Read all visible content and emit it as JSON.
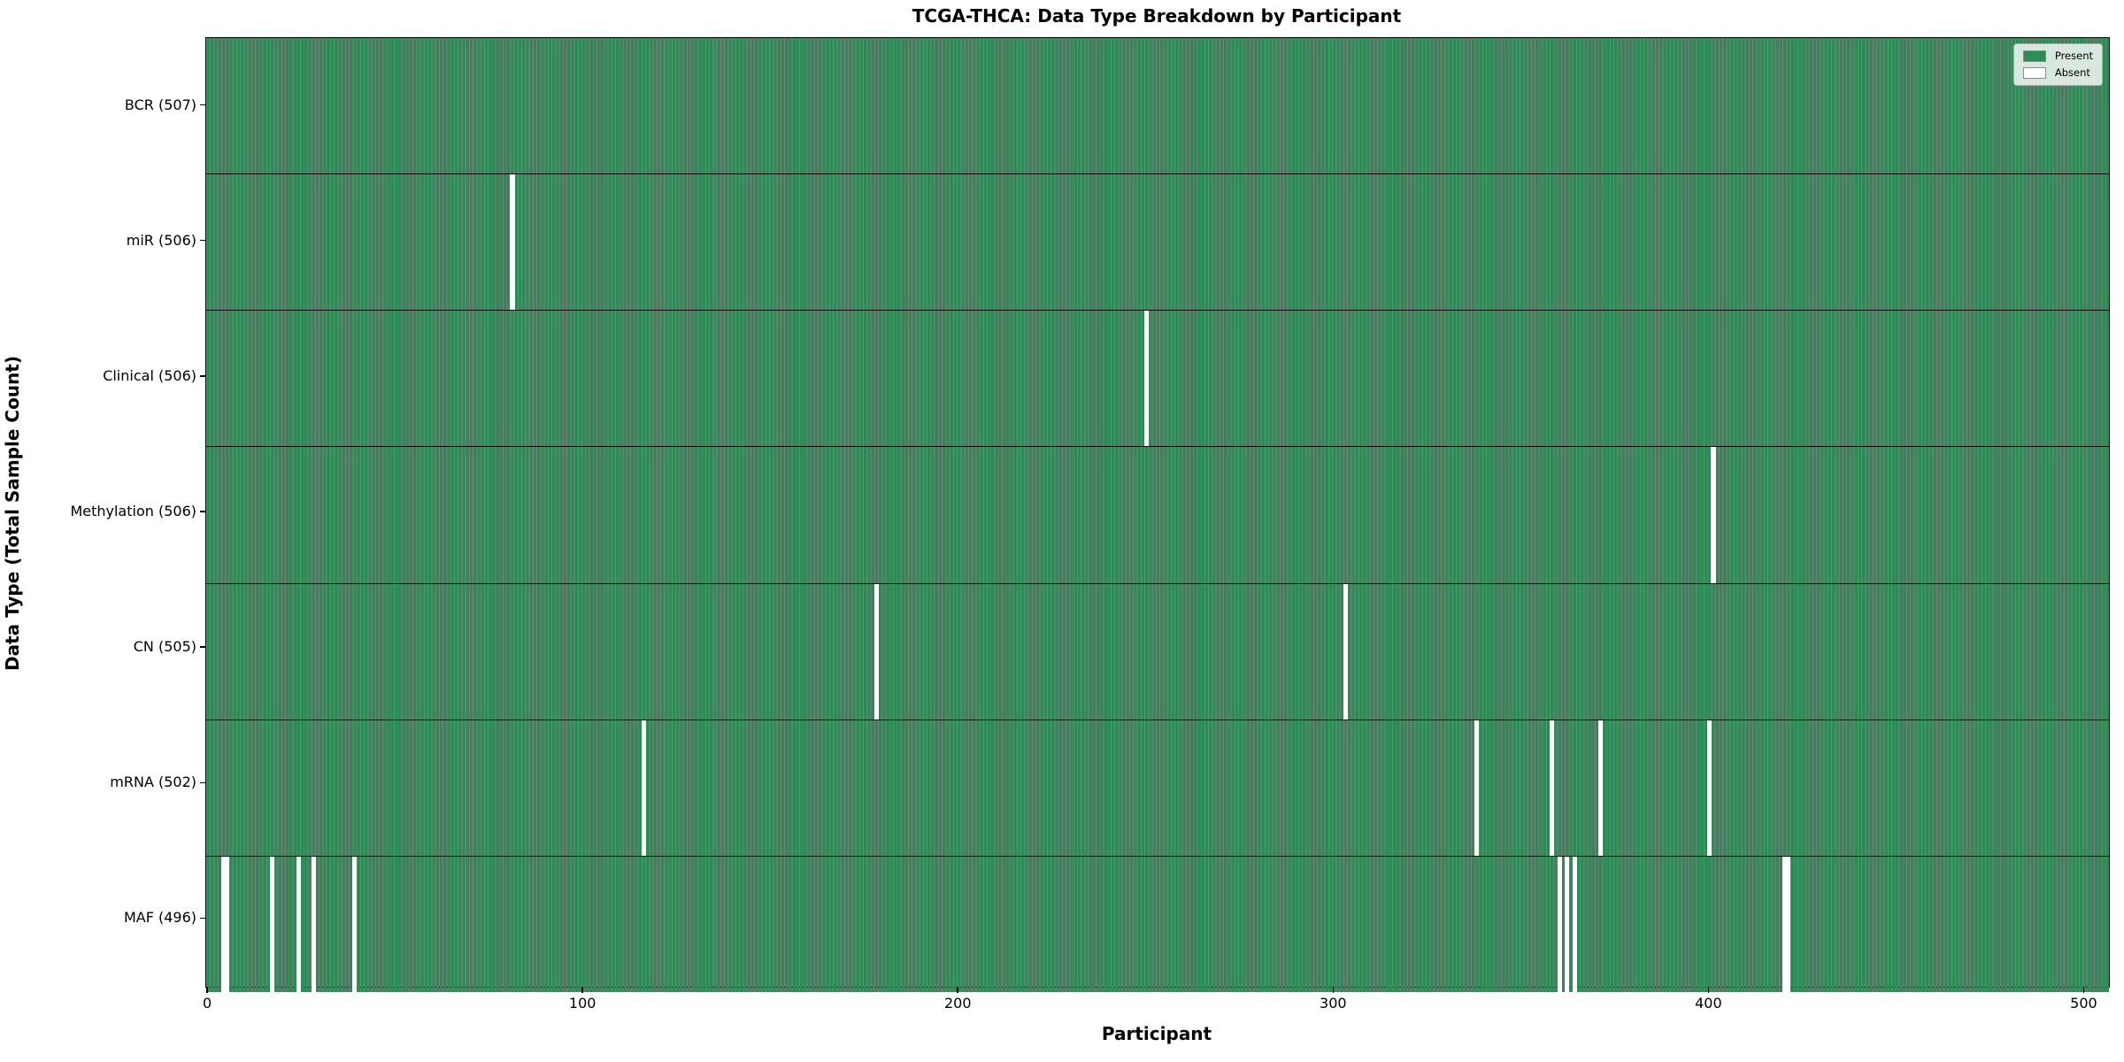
{
  "chart_data": {
    "type": "heatmap",
    "title": "TCGA-THCA: Data Type Breakdown by Participant",
    "x_axis": {
      "label": "Participant",
      "ticks": [
        0,
        100,
        200,
        300,
        400,
        500
      ],
      "range": [
        -0.5,
        506.5
      ]
    },
    "y_axis": {
      "label": "Data Type (Total Sample Count)"
    },
    "n_participants": 507,
    "legend": [
      {
        "label": "Present",
        "color": "#2e8b57"
      },
      {
        "label": "Absent",
        "color": "#ffffff"
      }
    ],
    "colors": {
      "present": "#2e8b57",
      "absent": "#ffffff",
      "bar_edge": "rgba(0,0,0,0.5)"
    },
    "rows": [
      {
        "label": "BCR (507)",
        "name": "BCR",
        "count": 507,
        "absent_participants": []
      },
      {
        "label": "miR (506)",
        "name": "miR",
        "count": 506,
        "absent_participants": [
          81
        ]
      },
      {
        "label": "Clinical (506)",
        "name": "Clinical",
        "count": 506,
        "absent_participants": [
          250
        ]
      },
      {
        "label": "Methylation (506)",
        "name": "Methylation",
        "count": 506,
        "absent_participants": [
          401
        ]
      },
      {
        "label": "CN (505)",
        "name": "CN",
        "count": 505,
        "absent_participants": [
          178,
          303
        ]
      },
      {
        "label": "mRNA (502)",
        "name": "mRNA",
        "count": 502,
        "absent_participants": [
          116,
          338,
          358,
          371,
          400
        ]
      },
      {
        "label": "MAF (496)",
        "name": "MAF",
        "count": 496,
        "absent_participants": [
          4,
          5,
          17,
          24,
          28,
          39,
          360,
          362,
          364,
          420,
          421
        ]
      }
    ]
  }
}
